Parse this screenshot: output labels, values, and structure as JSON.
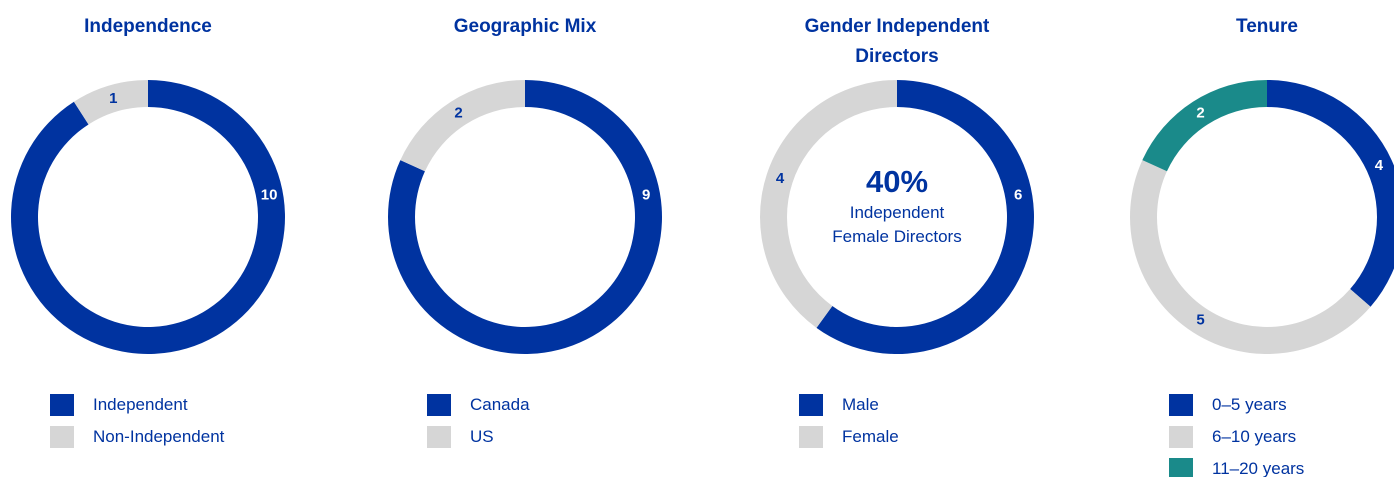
{
  "chart_data": [
    {
      "type": "pie",
      "title": "Independence",
      "categories": [
        "Independent",
        "Non-Independent"
      ],
      "values": [
        10,
        1
      ],
      "colors": [
        "#0033a0",
        "#d6d6d6"
      ],
      "legend": "bottom"
    },
    {
      "type": "pie",
      "title": "Geographic Mix",
      "categories": [
        "Canada",
        "US"
      ],
      "values": [
        9,
        2
      ],
      "colors": [
        "#0033a0",
        "#d6d6d6"
      ],
      "legend": "bottom"
    },
    {
      "type": "pie",
      "title": "Gender Independent Directors",
      "categories": [
        "Male",
        "Female"
      ],
      "values": [
        6,
        4
      ],
      "colors": [
        "#0033a0",
        "#d6d6d6"
      ],
      "legend": "bottom",
      "annotation": "40%",
      "annotation_caption": "Independent Female Directors"
    },
    {
      "type": "pie",
      "title": "Tenure",
      "categories": [
        "0–5 years",
        "6–10 years",
        "11–20 years"
      ],
      "values": [
        4,
        5,
        2
      ],
      "colors": [
        "#0033a0",
        "#d6d6d6",
        "#1a8a8a"
      ],
      "legend": "bottom"
    }
  ]
}
